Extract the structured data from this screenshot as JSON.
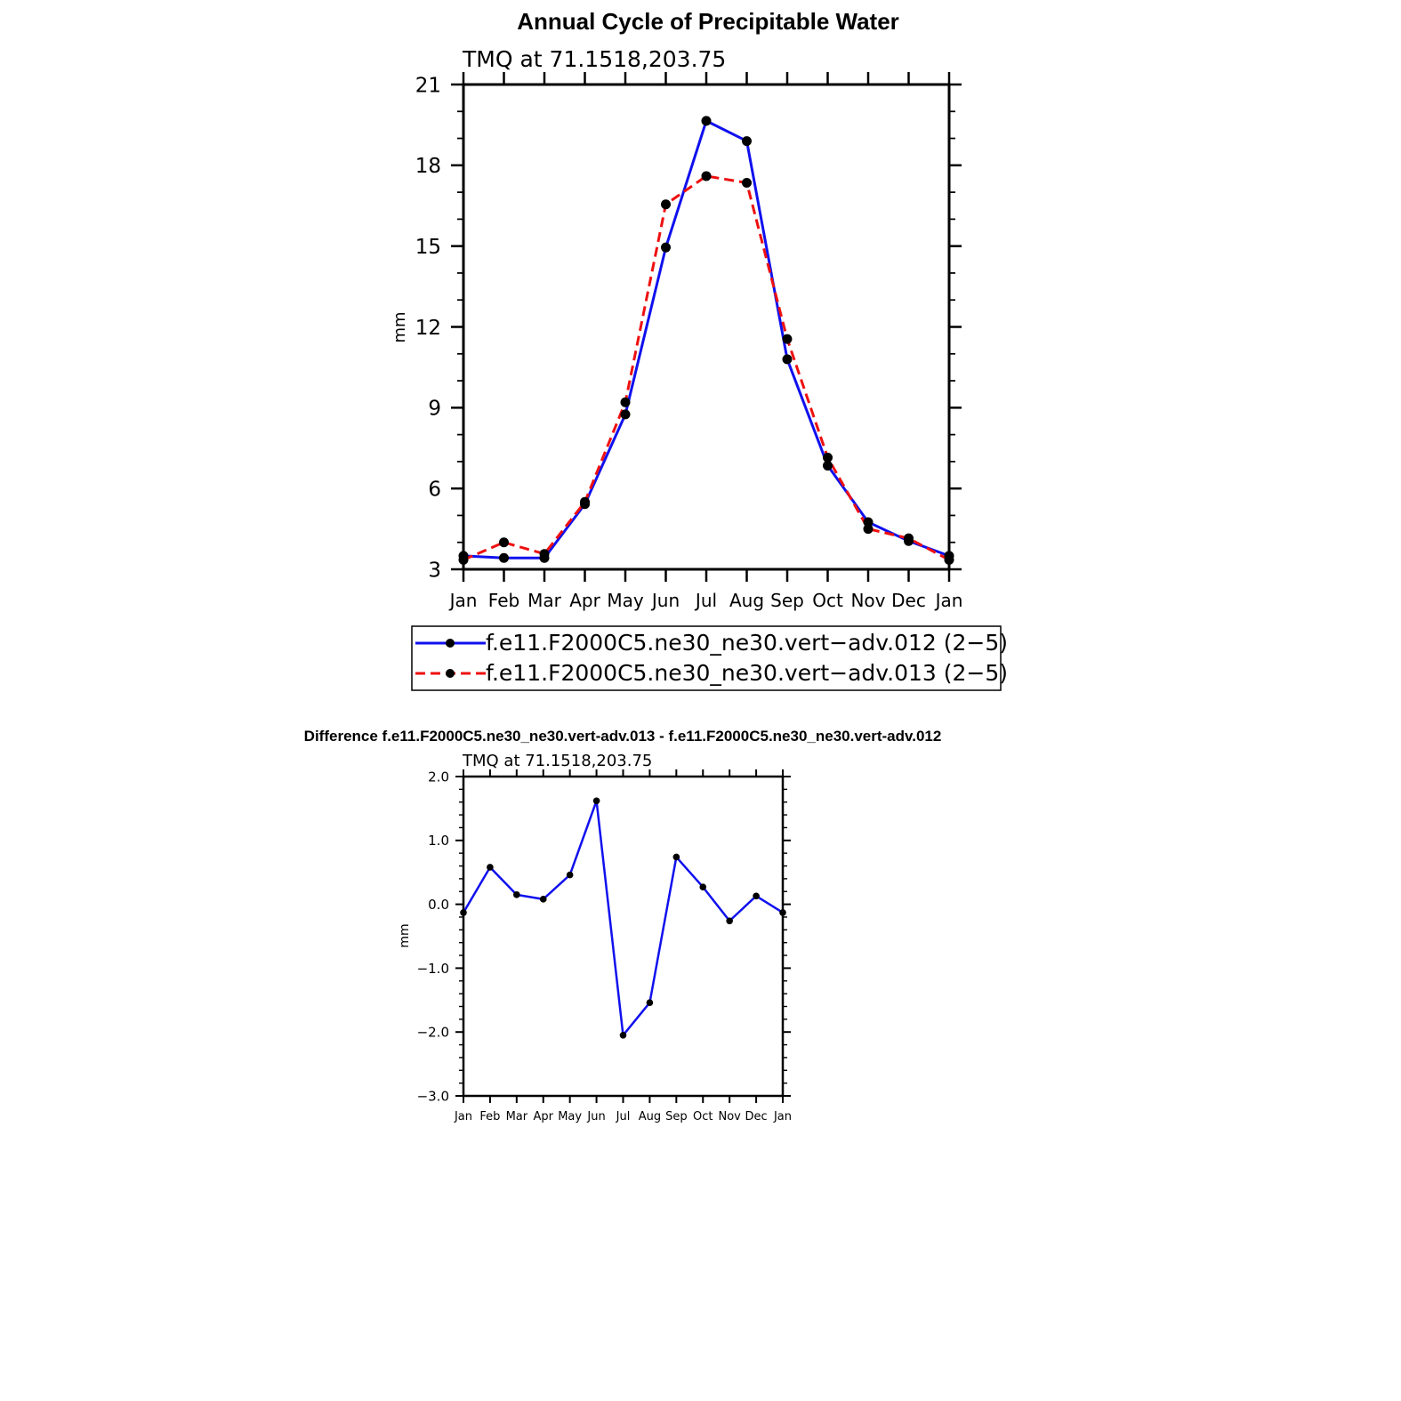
{
  "figure": {
    "title": "Annual Cycle of Precipitable Water",
    "diff_title": "Difference f.e11.F2000C5.ne30_ne30.vert-adv.013 - f.e11.F2000C5.ne30_ne30.vert-adv.012"
  },
  "colors": {
    "series_012": "#1010ee",
    "series_013": "#ee1010",
    "marker": "#000000",
    "axis": "#000000"
  },
  "chart_data": [
    {
      "type": "line",
      "subtitle": "TMQ  at  71.1518,203.75",
      "ylabel": "mm",
      "xlabel": "",
      "ylim": [
        3,
        21
      ],
      "yticks": [
        "21",
        "18",
        "15",
        "12",
        "9",
        "6",
        "3"
      ],
      "categories": [
        "Jan",
        "Feb",
        "Mar",
        "Apr",
        "May",
        "Jun",
        "Jul",
        "Aug",
        "Sep",
        "Oct",
        "Nov",
        "Dec",
        "Jan"
      ],
      "grid": false,
      "legend_placement": "below",
      "series": [
        {
          "name": "f.e11.F2000C5.ne30_ne30.vert−adv.012 (2−5)",
          "style": "solid",
          "values": [
            3.5,
            3.42,
            3.42,
            5.42,
            8.75,
            14.95,
            19.65,
            18.9,
            10.8,
            6.85,
            4.75,
            4.05,
            3.5
          ]
        },
        {
          "name": "f.e11.F2000C5.ne30_ne30.vert−adv.013 (2−5)",
          "style": "dashed",
          "values": [
            3.35,
            4.0,
            3.57,
            5.5,
            9.2,
            16.55,
            17.6,
            17.35,
            11.55,
            7.15,
            4.5,
            4.15,
            3.35
          ]
        }
      ]
    },
    {
      "type": "line",
      "subtitle": "TMQ  at  71.1518,203.75",
      "ylabel": "mm",
      "xlabel": "",
      "ylim": [
        -3.0,
        2.0
      ],
      "yticks": [
        "2.0",
        "1.0",
        "0.0",
        "−1.0",
        "−2.0",
        "−3.0"
      ],
      "categories": [
        "Jan",
        "Feb",
        "Mar",
        "Apr",
        "May",
        "Jun",
        "Jul",
        "Aug",
        "Sep",
        "Oct",
        "Nov",
        "Dec",
        "Jan"
      ],
      "grid": false,
      "series": [
        {
          "style": "solid",
          "values": [
            -0.13,
            0.58,
            0.15,
            0.08,
            0.46,
            1.62,
            -2.05,
            -1.54,
            0.74,
            0.27,
            -0.26,
            0.13,
            -0.13
          ]
        }
      ]
    }
  ]
}
